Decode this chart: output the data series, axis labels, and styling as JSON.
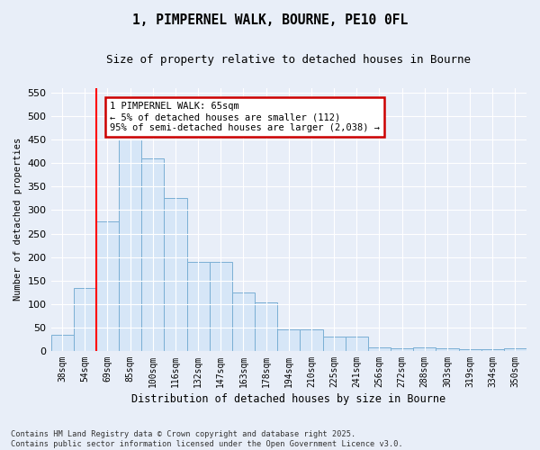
{
  "title_line1": "1, PIMPERNEL WALK, BOURNE, PE10 0FL",
  "title_line2": "Size of property relative to detached houses in Bourne",
  "xlabel": "Distribution of detached houses by size in Bourne",
  "ylabel": "Number of detached properties",
  "categories": [
    "38sqm",
    "54sqm",
    "69sqm",
    "85sqm",
    "100sqm",
    "116sqm",
    "132sqm",
    "147sqm",
    "163sqm",
    "178sqm",
    "194sqm",
    "210sqm",
    "225sqm",
    "241sqm",
    "256sqm",
    "272sqm",
    "288sqm",
    "303sqm",
    "319sqm",
    "334sqm",
    "350sqm"
  ],
  "values": [
    35,
    135,
    275,
    450,
    410,
    325,
    190,
    190,
    125,
    103,
    45,
    45,
    30,
    30,
    7,
    5,
    8,
    5,
    3,
    3,
    5
  ],
  "bar_color": "#d6e6f7",
  "bar_edge_color": "#7aafd4",
  "red_line_index": 2,
  "annotation_text": "1 PIMPERNEL WALK: 65sqm\n← 5% of detached houses are smaller (112)\n95% of semi-detached houses are larger (2,038) →",
  "annotation_box_facecolor": "#ffffff",
  "annotation_box_edgecolor": "#cc0000",
  "background_color": "#e8eef8",
  "grid_color": "#ffffff",
  "footnote": "Contains HM Land Registry data © Crown copyright and database right 2025.\nContains public sector information licensed under the Open Government Licence v3.0.",
  "ylim": [
    0,
    560
  ],
  "yticks": [
    0,
    50,
    100,
    150,
    200,
    250,
    300,
    350,
    400,
    450,
    500,
    550
  ]
}
